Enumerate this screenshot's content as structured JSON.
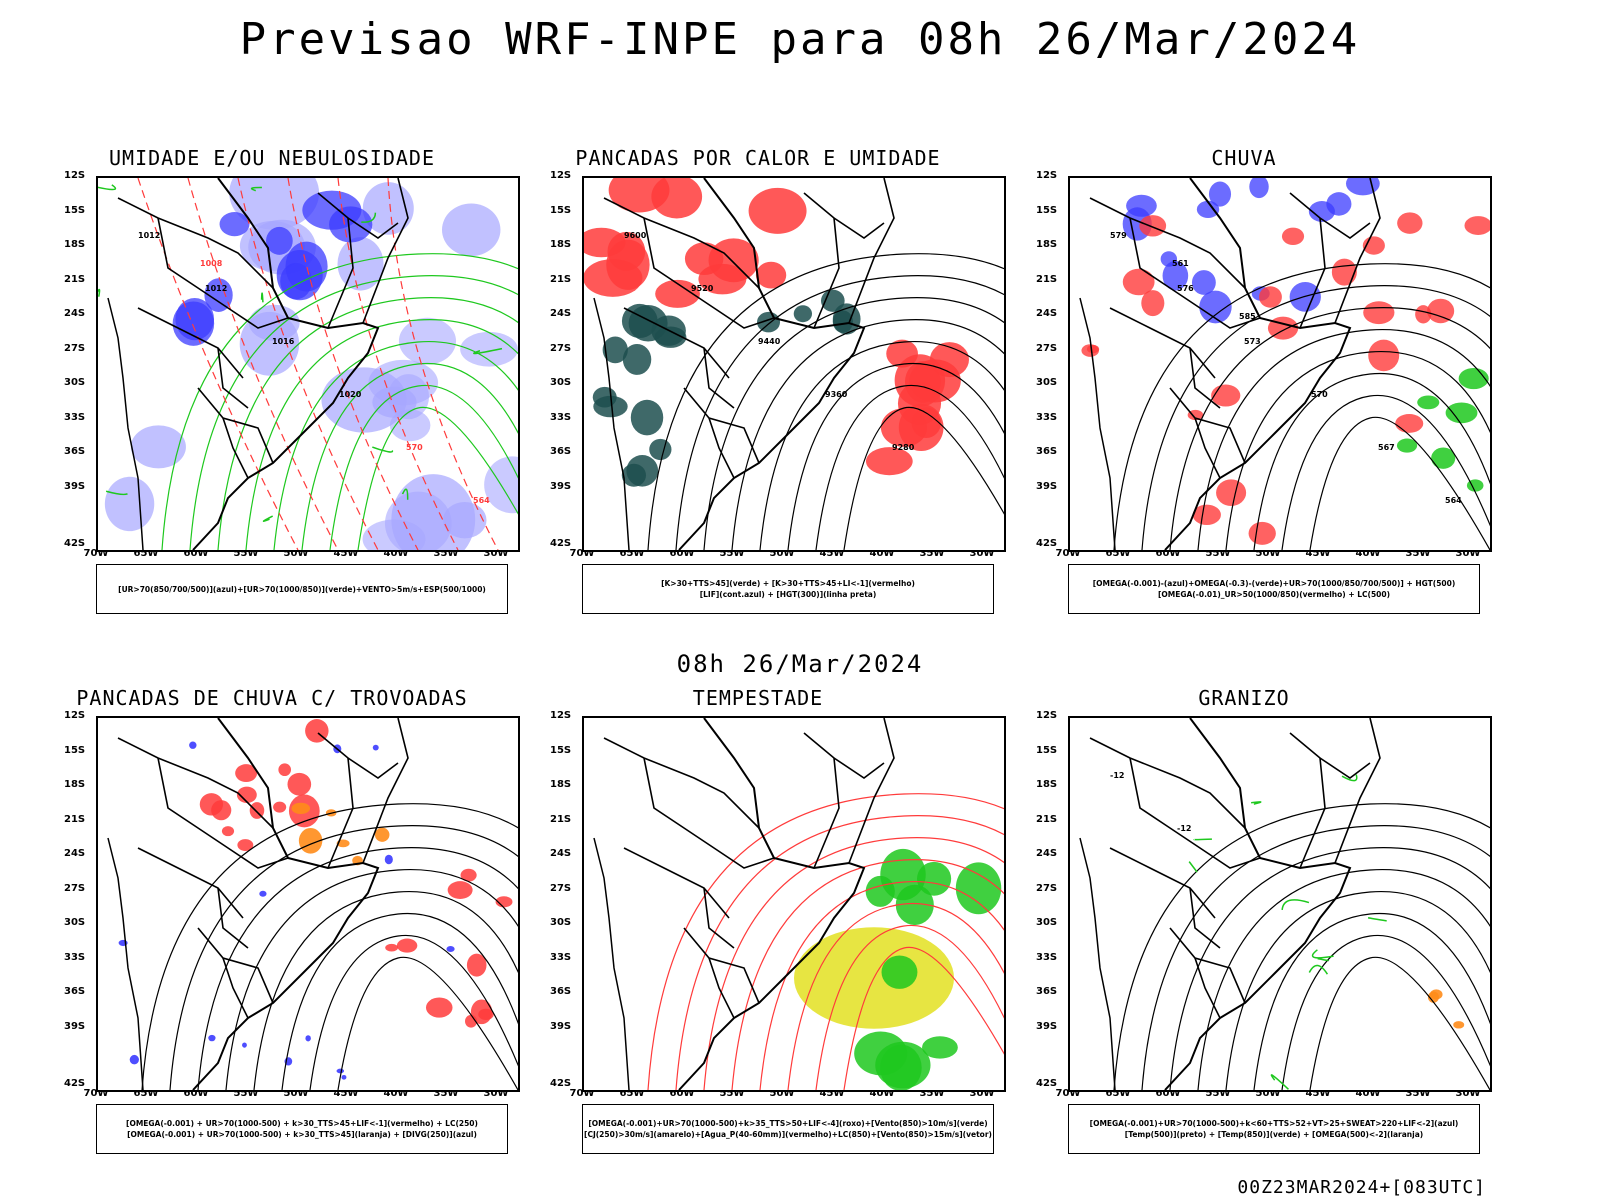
{
  "title": "Previsao WRF-INPE  para 08h 26/Mar/2024",
  "mid_date": "08h 26/Mar/2024",
  "footer": "00Z23MAR2024+[083UTC]",
  "axes": {
    "lat": [
      "12S",
      "15S",
      "18S",
      "21S",
      "24S",
      "27S",
      "30S",
      "33S",
      "36S",
      "39S",
      "42S"
    ],
    "lon": [
      "70W",
      "65W",
      "60W",
      "55W",
      "50W",
      "45W",
      "40W",
      "35W",
      "30W"
    ]
  },
  "panels": [
    {
      "title": "UMIDADE E/OU NEBULOSIDADE",
      "legend": [
        "[UR>70(850/700/500)](azul)+[UR>70(1000/850)](verde)+VENTO>5m/s+ESP(500/1000)"
      ],
      "labels": [
        "1012",
        "1012",
        "1016",
        "1020",
        "570",
        "564",
        "1008"
      ]
    },
    {
      "title": "PANCADAS POR CALOR E UMIDADE",
      "legend": [
        "[K>30+TTS>45](verde) + [K>30+TTS>45+LI<-1](vermelho)",
        "[LIF](cont.azul) + [HGT(300)](linha preta)"
      ],
      "labels": [
        "9600",
        "9520",
        "9440",
        "9360",
        "9280"
      ]
    },
    {
      "title": "CHUVA",
      "legend": [
        "[OMEGA(-0.001)-(azul)+OMEGA(-0.3)-(verde)+UR>70(1000/850/700/500)] + HGT(500)",
        "[OMEGA(-0.01)_UR>50(1000/850)(vermelho) + LC(500)"
      ],
      "labels": [
        "579",
        "576",
        "573",
        "570",
        "567",
        "564",
        "561",
        "585"
      ]
    },
    {
      "title": "PANCADAS DE CHUVA C/ TROVOADAS",
      "legend": [
        "[OMEGA(-0.001) + UR>70(1000-500) + k>30_TTS>45+LIF<-1](vermelho) + LC(250)",
        "[OMEGA(-0.001) + UR>70(1000-500) + k>30_TTS>45](laranja) + [DIVG(250)](azul)"
      ],
      "labels": []
    },
    {
      "title": "TEMPESTADE",
      "legend": [
        "[OMEGA(-0.001)+UR>70(1000-500)+k>35_TTS>50+LIF<-4](roxo)+[Vento(850)>10m/s](verde)",
        "[CJ(250)>30m/s](amarelo)+[Agua_P(40-60mm)](vermelho)+LC(850)+[Vento(850)>15m/s](vetor)"
      ],
      "labels": []
    },
    {
      "title": "GRANIZO",
      "legend": [
        "[OMEGA(-0.001)+UR>70(1000-500)+k<60+TTS>52+VT>25+SWEAT>220+LIF<-2](azul)",
        "[Temp(500)](preto) + [Temp(850)](verde) + [OMEGA(500)<-2](laranja)"
      ],
      "labels": [
        "-12",
        "-12"
      ]
    }
  ],
  "colors": {
    "blue": "#3b3bff",
    "lightblue": "#a7a7ff",
    "green": "#1ec81e",
    "red": "#ff3b3b",
    "darkteal": "#1d4f4f",
    "orange": "#ff8c1a",
    "yellow": "#e4e22e"
  }
}
